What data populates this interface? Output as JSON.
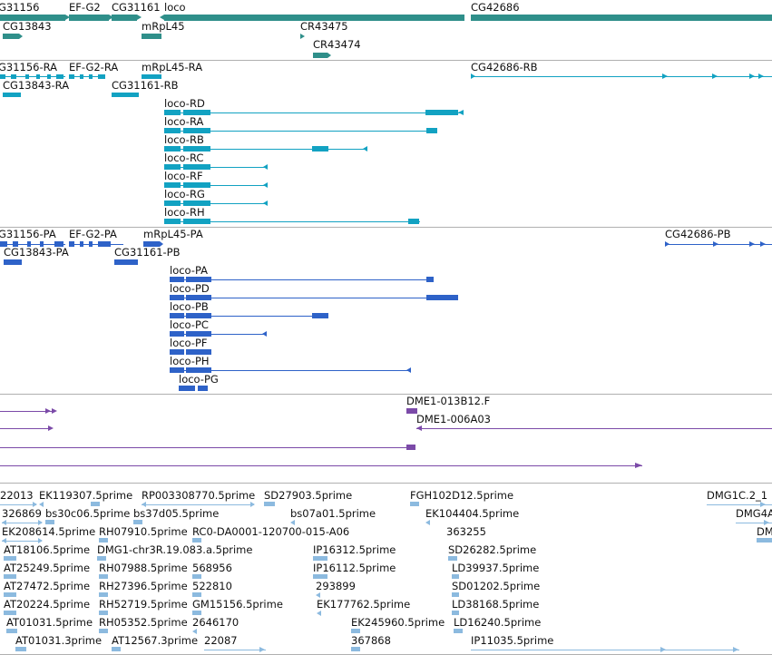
{
  "colors": {
    "gene": "#2f8f8a",
    "transcript": "#12a2c2",
    "protein": "#2e62c8",
    "clone": "#7b4aa8",
    "est": "#8cbadf",
    "separator": "#b0b0b0"
  },
  "genes": {
    "labels": [
      "G31156",
      "EF-G2",
      "CG31161",
      "loco",
      "CG42686",
      "CG13843",
      "mRpL45",
      "CR43475",
      "CR43474"
    ]
  },
  "transcripts": {
    "labels": [
      "G31156-RA",
      "EF-G2-RA",
      "mRpL45-RA",
      "CG42686-RB",
      "CG13843-RA",
      "CG31161-RB",
      "loco-RD",
      "loco-RA",
      "loco-RB",
      "loco-RC",
      "loco-RF",
      "loco-RG",
      "loco-RH"
    ]
  },
  "proteins": {
    "labels": [
      "G31156-PA",
      "EF-G2-PA",
      "mRpL45-PA",
      "CG42686-PB",
      "CG13843-PA",
      "CG31161-PB",
      "loco-PA",
      "loco-PD",
      "loco-PB",
      "loco-PC",
      "loco-PF",
      "loco-PH",
      "loco-PG"
    ]
  },
  "clones": {
    "labels": [
      "DME1-013B12.F",
      "DME1-006A03"
    ]
  },
  "ests": {
    "labels": [
      "22013",
      "EK119307.5prime",
      "RP003308770.5prime",
      "SD27903.5prime",
      "FGH102D12.5prime",
      "DMG1C.2_1",
      "326869",
      "bs30c06.5prime",
      "bs37d05.5prime",
      "bs07a01.5prime",
      "EK104404.5prime",
      "DMG4A",
      "EK208614.5prime",
      "RH07910.5prime",
      "RC0-DA0001-120700-015-A06",
      "363255",
      "DM",
      "AT18106.5prime",
      "DMG1-chr3R.19.083.a.5prime",
      "IP16312.5prime",
      "SD26282.5prime",
      "AT25249.5prime",
      "RH07988.5prime",
      "568956",
      "IP16112.5prime",
      "LD39937.5prime",
      "AT27472.5prime",
      "RH27396.5prime",
      "522810",
      "293899",
      "SD01202.5prime",
      "AT20224.5prime",
      "RH52719.5prime",
      "GM15156.5prime",
      "EK177762.5prime",
      "LD38168.5prime",
      "AT01031.5prime",
      "RH05352.5prime",
      "2646170",
      "EK245960.5prime",
      "LD16240.5prime",
      "AT01031.3prime",
      "AT12567.3prime",
      "22087",
      "367868",
      "IP11035.5prime"
    ]
  }
}
